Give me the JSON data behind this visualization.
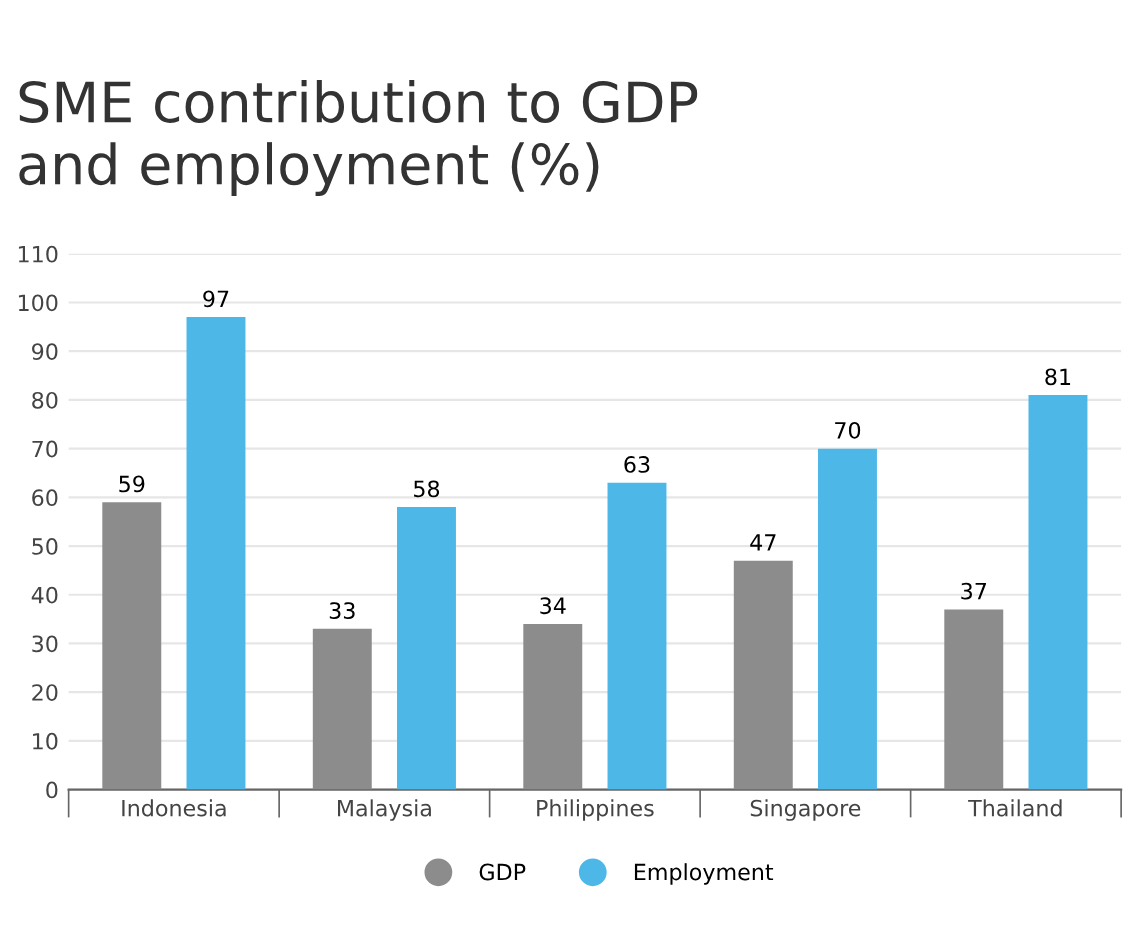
{
  "chart_data": {
    "type": "bar",
    "title": "SME contribution to GDP\nand employment (%)",
    "categories": [
      "Indonesia",
      "Malaysia",
      "Philippines",
      "Singapore",
      "Thailand"
    ],
    "series": [
      {
        "name": "GDP",
        "color": "#8c8c8c",
        "values": [
          59,
          33,
          34,
          47,
          37
        ]
      },
      {
        "name": "Employment",
        "color": "#4db8e8",
        "values": [
          97,
          58,
          63,
          70,
          81
        ]
      }
    ],
    "ylim": [
      0,
      110
    ],
    "yticks": [
      0,
      10,
      20,
      30,
      40,
      50,
      60,
      70,
      80,
      90,
      100,
      110
    ],
    "grid": "y",
    "legend": "bottom",
    "data_labels": true
  }
}
